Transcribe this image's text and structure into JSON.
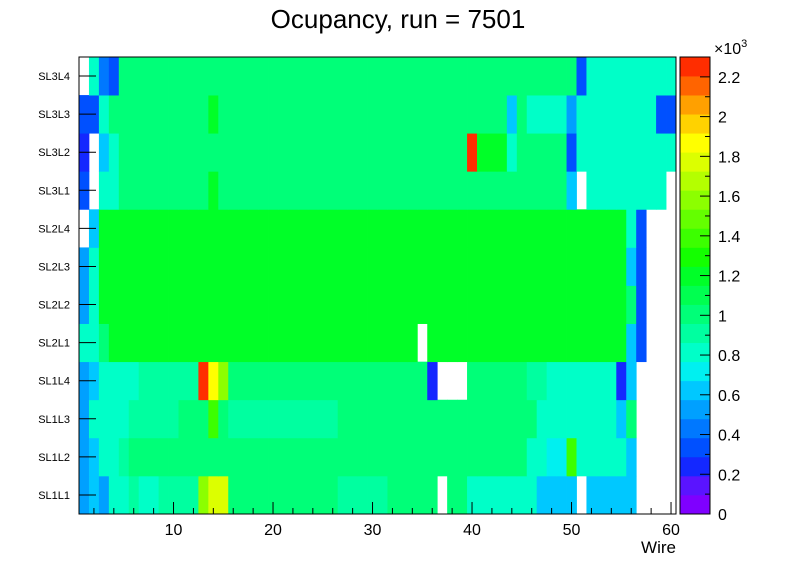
{
  "chart_data": {
    "type": "heatmap",
    "title": "Ocupancy, run = 7501",
    "xlabel": "Wire",
    "ylabel": "",
    "x_tick_labels": [
      "10",
      "20",
      "30",
      "40",
      "50",
      "60"
    ],
    "x_range": [
      0.5,
      60.5
    ],
    "y_categories": [
      "SL1L1",
      "SL1L2",
      "SL1L3",
      "SL1L4",
      "SL2L1",
      "SL2L2",
      "SL2L3",
      "SL2L4",
      "SL3L1",
      "SL3L2",
      "SL3L3",
      "SL3L4"
    ],
    "z_range": [
      0,
      2300
    ],
    "colorbar_tick_labels": [
      "0",
      "0.2",
      "0.4",
      "0.6",
      "0.8",
      "1",
      "1.2",
      "1.4",
      "1.6",
      "1.8",
      "2",
      "2.2"
    ],
    "colorbar_multiplier": "×10",
    "colorbar_exponent": "3",
    "palette": [
      "#7f00ff",
      "#5a14ff",
      "#1428ff",
      "#0050ff",
      "#0078ff",
      "#00a0ff",
      "#00c8ff",
      "#00f0f0",
      "#00ffc8",
      "#00ffa0",
      "#00ff78",
      "#00ff50",
      "#00ff28",
      "#14ff00",
      "#3cff00",
      "#64ff00",
      "#8cff00",
      "#b4ff00",
      "#dcff00",
      "#ffff00",
      "#ffd200",
      "#ffa000",
      "#ff6400",
      "#ff2d00"
    ],
    "rows": [
      {
        "layer": "SL1L1",
        "values": [
          520,
          600,
          560,
          820,
          860,
          880,
          860,
          860,
          900,
          900,
          880,
          880,
          1600,
          1800,
          1800,
          1000,
          1000,
          1000,
          1020,
          1030,
          1000,
          1000,
          1020,
          1000,
          1020,
          1010,
          900,
          900,
          900,
          900,
          900,
          1000,
          1000,
          1000,
          1000,
          1000,
          0,
          1000,
          1020,
          820,
          820,
          860,
          860,
          860,
          860,
          820,
          620,
          620,
          620,
          620,
          0,
          620,
          620,
          620,
          620,
          620,
          0,
          0,
          0,
          0
        ]
      },
      {
        "layer": "SL1L2",
        "values": [
          560,
          620,
          820,
          860,
          900,
          960,
          960,
          980,
          1000,
          1020,
          1000,
          1000,
          1020,
          1000,
          960,
          960,
          960,
          1000,
          1000,
          1020,
          1020,
          1020,
          1030,
          1030,
          1040,
          1040,
          1000,
          1000,
          1000,
          1000,
          1020,
          1000,
          1020,
          1020,
          1020,
          1020,
          1020,
          1020,
          1020,
          1020,
          1020,
          1020,
          1040,
          1040,
          1040,
          820,
          820,
          760,
          720,
          1400,
          780,
          820,
          860,
          860,
          820,
          620,
          0,
          0,
          0,
          0
        ]
      },
      {
        "layer": "SL1L3",
        "values": [
          560,
          860,
          860,
          860,
          860,
          900,
          900,
          920,
          920,
          940,
          980,
          980,
          980,
          1400,
          980,
          900,
          900,
          900,
          920,
          920,
          940,
          920,
          920,
          920,
          940,
          940,
          960,
          960,
          960,
          960,
          960,
          980,
          1020,
          980,
          960,
          960,
          1000,
          1000,
          1000,
          1000,
          1000,
          1000,
          980,
          980,
          960,
          960,
          820,
          820,
          820,
          820,
          820,
          860,
          860,
          860,
          620,
          1040,
          0,
          0,
          0,
          0
        ]
      },
      {
        "layer": "SL1L4",
        "values": [
          560,
          620,
          800,
          800,
          800,
          860,
          880,
          880,
          900,
          900,
          920,
          900,
          2300,
          1900,
          1600,
          980,
          980,
          980,
          980,
          1000,
          980,
          960,
          960,
          960,
          960,
          960,
          1000,
          1000,
          1000,
          1000,
          1000,
          1000,
          1000,
          1020,
          1000,
          200,
          0,
          0,
          0,
          1000,
          1000,
          1000,
          1000,
          1000,
          1000,
          900,
          900,
          820,
          820,
          820,
          820,
          820,
          860,
          860,
          200,
          620,
          0,
          0,
          0,
          0
        ]
      },
      {
        "layer": "SL2L1",
        "values": [
          780,
          800,
          1020,
          1200,
          1240,
          1240,
          1240,
          1240,
          1240,
          1240,
          1240,
          1240,
          1240,
          1240,
          1240,
          1240,
          1240,
          1240,
          1240,
          1240,
          1240,
          1240,
          1240,
          1240,
          1240,
          1240,
          1240,
          1240,
          1240,
          1240,
          1240,
          1240,
          1240,
          1240,
          0,
          1240,
          1240,
          1200,
          1240,
          1240,
          1240,
          1240,
          1240,
          1240,
          1240,
          1240,
          1240,
          1240,
          1240,
          1240,
          1240,
          1240,
          1240,
          1240,
          1240,
          620,
          380,
          0,
          0,
          0
        ]
      },
      {
        "layer": "SL2L2",
        "values": [
          520,
          860,
          1240,
          1240,
          1240,
          1240,
          1240,
          1240,
          1240,
          1240,
          1240,
          1240,
          1240,
          1240,
          1240,
          1240,
          1240,
          1240,
          1240,
          1240,
          1240,
          1240,
          1240,
          1240,
          1240,
          1240,
          1240,
          1240,
          1240,
          1240,
          1240,
          1240,
          1240,
          1240,
          1240,
          1240,
          1240,
          1240,
          1240,
          1240,
          1240,
          1240,
          1240,
          1240,
          1240,
          1240,
          1240,
          1240,
          1240,
          1240,
          1240,
          1240,
          1240,
          1240,
          1240,
          1000,
          380,
          0,
          0,
          0
        ]
      },
      {
        "layer": "SL2L3",
        "values": [
          520,
          860,
          1240,
          1240,
          1240,
          1240,
          1240,
          1240,
          1240,
          1240,
          1240,
          1240,
          1240,
          1240,
          1240,
          1240,
          1240,
          1240,
          1240,
          1240,
          1240,
          1240,
          1240,
          1240,
          1240,
          1240,
          1240,
          1240,
          1240,
          1240,
          1240,
          1240,
          1240,
          1240,
          1240,
          1240,
          1240,
          1240,
          1240,
          1240,
          1240,
          1240,
          1240,
          1240,
          1240,
          1240,
          1240,
          1240,
          1240,
          1240,
          1240,
          1240,
          1240,
          1240,
          1240,
          620,
          380,
          0,
          0,
          0
        ]
      },
      {
        "layer": "SL2L4",
        "values": [
          0,
          600,
          1240,
          1240,
          1240,
          1240,
          1240,
          1240,
          1240,
          1240,
          1240,
          1240,
          1240,
          1240,
          1240,
          1240,
          1240,
          1240,
          1240,
          1240,
          1240,
          1240,
          1240,
          1240,
          1240,
          1240,
          1240,
          1240,
          1240,
          1240,
          1240,
          1240,
          1240,
          1240,
          1240,
          1240,
          1240,
          1240,
          1240,
          1240,
          1240,
          1240,
          1240,
          1240,
          1240,
          1240,
          1240,
          1240,
          1240,
          1240,
          1240,
          1240,
          1240,
          1240,
          1240,
          800,
          380,
          0,
          0,
          0
        ]
      },
      {
        "layer": "SL3L1",
        "values": [
          360,
          0,
          820,
          860,
          1000,
          1020,
          1040,
          1040,
          1040,
          1040,
          1040,
          1040,
          1040,
          1200,
          1040,
          1040,
          1040,
          1040,
          1040,
          1040,
          1040,
          1040,
          1040,
          1040,
          1040,
          1040,
          1040,
          1040,
          1040,
          1040,
          1040,
          1040,
          1040,
          1040,
          1040,
          1040,
          1040,
          1040,
          1040,
          1040,
          1040,
          1040,
          1040,
          1040,
          1040,
          1040,
          1040,
          1040,
          1040,
          620,
          0,
          860,
          860,
          860,
          860,
          860,
          860,
          860,
          860,
          0
        ]
      },
      {
        "layer": "SL3L2",
        "values": [
          200,
          0,
          620,
          860,
          960,
          960,
          960,
          960,
          960,
          960,
          960,
          960,
          960,
          960,
          960,
          960,
          960,
          960,
          960,
          960,
          960,
          960,
          960,
          960,
          960,
          960,
          960,
          960,
          960,
          960,
          960,
          960,
          960,
          960,
          960,
          960,
          960,
          960,
          960,
          2300,
          1200,
          1200,
          1200,
          800,
          960,
          960,
          960,
          960,
          960,
          300,
          860,
          860,
          860,
          860,
          860,
          860,
          860,
          860,
          860,
          860
        ]
      },
      {
        "layer": "SL3L3",
        "values": [
          300,
          300,
          860,
          960,
          1040,
          1040,
          1040,
          1040,
          1040,
          1040,
          1040,
          1040,
          1040,
          1200,
          1040,
          1040,
          1040,
          1040,
          1040,
          1040,
          1040,
          1040,
          1040,
          1040,
          1040,
          1040,
          1040,
          1040,
          1040,
          1040,
          1040,
          1040,
          1040,
          1040,
          1040,
          1040,
          1040,
          1040,
          1040,
          1040,
          1040,
          1040,
          1040,
          620,
          1040,
          860,
          860,
          860,
          860,
          560,
          860,
          860,
          860,
          860,
          860,
          860,
          860,
          860,
          300,
          300
        ]
      },
      {
        "layer": "SL3L4",
        "values": [
          0,
          860,
          400,
          300,
          1040,
          1040,
          1040,
          1040,
          1040,
          1040,
          1040,
          1040,
          1040,
          1040,
          1040,
          1040,
          1040,
          1040,
          1040,
          1040,
          1040,
          1040,
          1040,
          1040,
          1040,
          1040,
          1040,
          1040,
          1040,
          1040,
          1040,
          1040,
          1040,
          1040,
          1040,
          1040,
          1040,
          1040,
          1040,
          1040,
          1040,
          1040,
          1040,
          1040,
          1040,
          1040,
          1040,
          1040,
          1040,
          1040,
          300,
          860,
          860,
          860,
          860,
          860,
          860,
          860,
          860,
          800
        ]
      }
    ]
  }
}
